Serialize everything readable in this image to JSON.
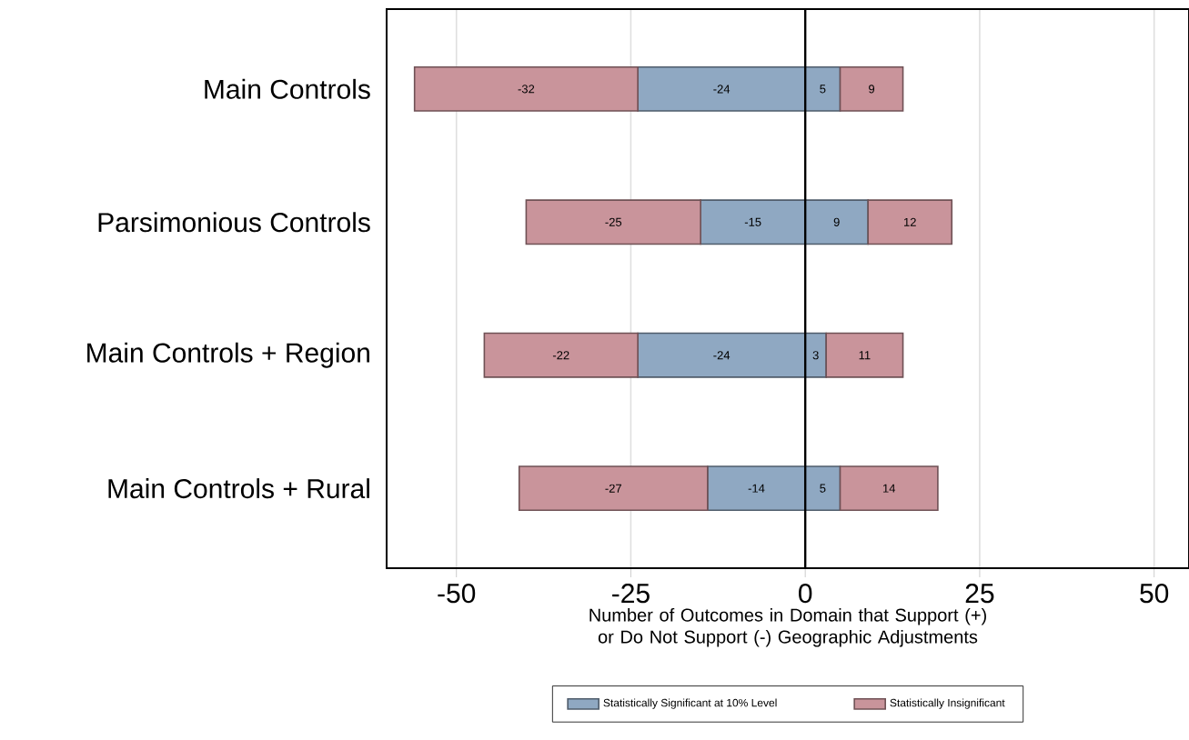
{
  "chart_data": {
    "type": "bar",
    "orientation": "horizontal",
    "stacked": true,
    "data_labels": true,
    "categories": [
      "Main Controls",
      "Parsimonious Controls",
      "Main Controls + Region",
      "Main Controls + Rural"
    ],
    "series": [
      {
        "name": "Statistically Significant at 10% Level",
        "color": "#8fa8c2",
        "values": [
          -24,
          -15,
          -24,
          -14
        ]
      },
      {
        "name": "Statistically Insignificant",
        "color": "#c9949b",
        "values": [
          -32,
          -25,
          -22,
          -27
        ]
      },
      {
        "color": "#8fa8c2",
        "values": [
          5,
          9,
          3,
          5
        ]
      },
      {
        "color": "#c9949b",
        "values": [
          9,
          12,
          11,
          14
        ]
      }
    ],
    "xlabel": "Number of Outcomes in Domain that Support (+) or Do Not Support (-) Geographic Adjustments",
    "xlim": [
      -60,
      55
    ],
    "xticks": [
      -50,
      -25,
      0,
      25,
      50
    ],
    "grid": "x",
    "legend": "bottom",
    "ref_lines": [
      {
        "axis": "x",
        "value": 0,
        "color": "#000000"
      }
    ]
  }
}
